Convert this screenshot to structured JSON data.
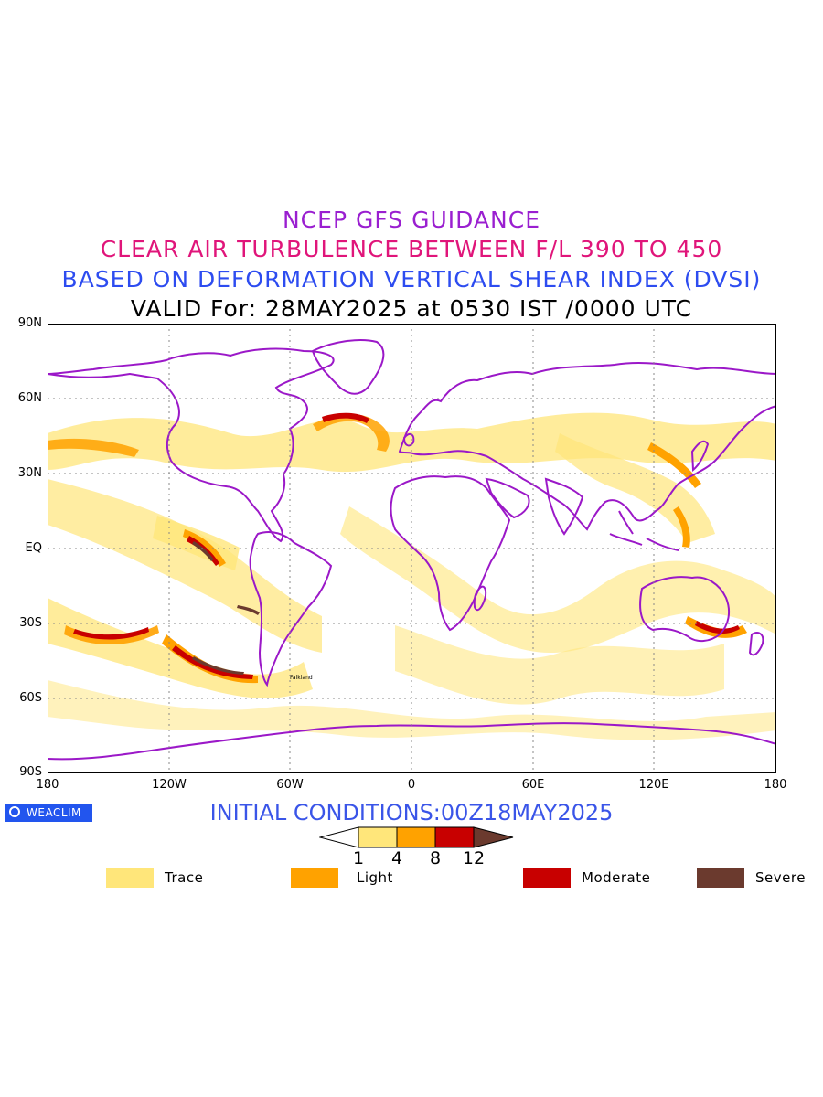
{
  "header": {
    "line1": "NCEP GFS GUIDANCE",
    "line2": "CLEAR AIR TURBULENCE BETWEEN F/L 390 TO 450",
    "line3": "BASED ON DEFORMATION VERTICAL SHEAR INDEX (DVSI)",
    "line4": "VALID For: 28MAY2025 at 0530 IST /0000 UTC",
    "colors": {
      "line1": "#9a1fd0",
      "line2": "#e0157a",
      "line3": "#2d4cf0",
      "line4": "#000000"
    }
  },
  "map": {
    "lat_labels": [
      "90N",
      "60N",
      "30N",
      "EQ",
      "30S",
      "60S",
      "90S"
    ],
    "lon_labels": [
      "180",
      "120W",
      "60W",
      "0",
      "60E",
      "120E",
      "180"
    ],
    "coastline_color": "#9b18c8",
    "place_labels": [
      "Falkland"
    ]
  },
  "footer": {
    "badge": "WEACLIM",
    "initial_conditions": "INITIAL CONDITIONS:00Z18MAY2025",
    "initial_color": "#3a55e8"
  },
  "colorbar": {
    "ticks": [
      "1",
      "4",
      "8",
      "12"
    ],
    "colors": [
      "#ffffff",
      "#ffe67a",
      "#ffa200",
      "#c80000",
      "#6b3a2e"
    ]
  },
  "legend": [
    {
      "label": "Trace",
      "color": "#ffe67a"
    },
    {
      "label": "Light",
      "color": "#ffa200"
    },
    {
      "label": "Moderate",
      "color": "#c80000"
    },
    {
      "label": "Severe",
      "color": "#6b3a2e"
    }
  ]
}
